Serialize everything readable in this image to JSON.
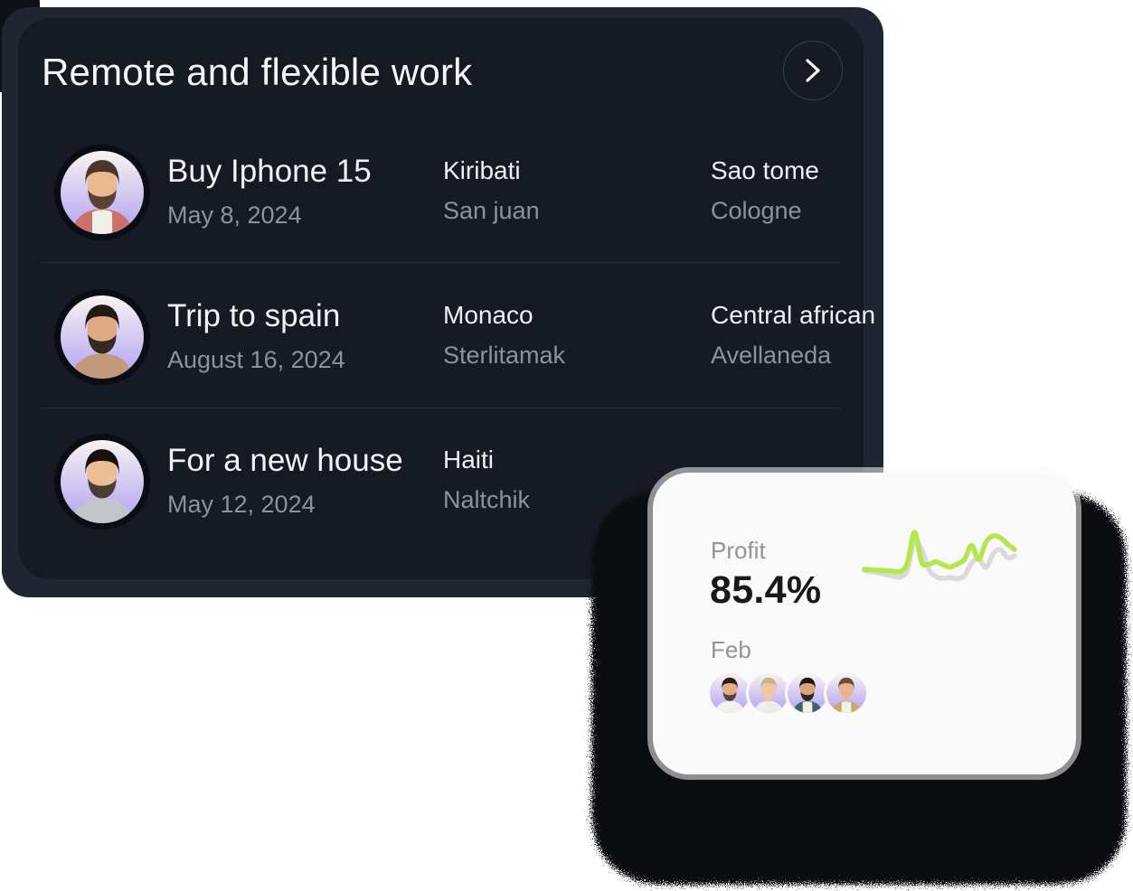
{
  "page": {
    "background": "#ffffff"
  },
  "dark_card": {
    "title": "Remote and flexible work",
    "forward_icon": "chevron-right",
    "background": "#151a24",
    "frame_color": "#1f2531",
    "rows": [
      {
        "title": "Buy Iphone 15",
        "date": "May 8, 2024",
        "location_a": "Kiribati",
        "location_a_sub": "San juan",
        "location_b": "Sao tome",
        "location_b_sub": "Cologne"
      },
      {
        "title": "Trip to spain",
        "date": "August 16, 2024",
        "location_a": "Monaco",
        "location_a_sub": "Sterlitamak",
        "location_b": "Central african",
        "location_b_sub": "Avellaneda"
      },
      {
        "title": "For a new house",
        "date": "May 12, 2024",
        "location_a": "Haiti",
        "location_a_sub": "Naltchik",
        "location_b": "",
        "location_b_sub": ""
      }
    ]
  },
  "stat_card": {
    "label": "Profit",
    "value": "85.4%",
    "month": "Feb",
    "team_avatar_count": 4,
    "background": "#fafafa"
  },
  "colors": {
    "accent_green": "#b6e64e",
    "spark_gray": "#dadada",
    "text_primary_dark_card": "#f1f3f6",
    "text_secondary": "#8d929b",
    "stat_text": "#17191d"
  },
  "chart_data": {
    "type": "line",
    "title": "Profit sparkline (no axes shown)",
    "xlabel": "",
    "ylabel": "",
    "axes_visible": false,
    "legend": false,
    "series": [
      {
        "name": "profit-current",
        "color": "#b6e64e",
        "values": [
          26,
          25,
          24,
          23,
          22,
          21,
          40,
          108,
          42,
          37,
          43,
          36,
          31,
          38,
          48,
          79,
          48,
          86,
          100,
          96,
          82,
          70
        ]
      },
      {
        "name": "profit-previous",
        "color": "#dadada",
        "values": [
          23,
          21,
          18,
          14,
          11,
          9,
          24,
          88,
          70,
          26,
          10,
          6,
          8,
          5,
          12,
          40,
          49,
          30,
          60,
          70,
          52,
          56
        ]
      }
    ]
  }
}
